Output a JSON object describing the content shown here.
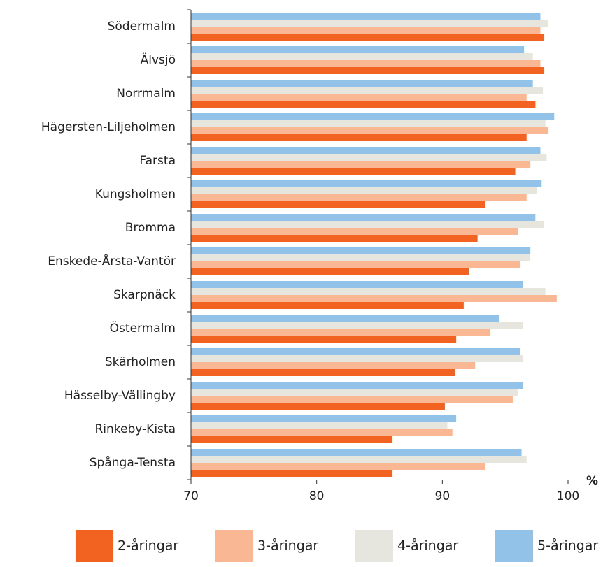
{
  "chart_data": {
    "type": "hbar",
    "categories": [
      "Södermalm",
      "Älvsjö",
      "Norrmalm",
      "Hägersten-Liljeholmen",
      "Farsta",
      "Kungsholmen",
      "Bromma",
      "Enskede-Årsta-Vantör",
      "Skarpnäck",
      "Östermalm",
      "Skärholmen",
      "Hässelby-Vällingby",
      "Rinkeby-Kista",
      "Spånga-Tensta"
    ],
    "series": [
      {
        "name": "5-åringar",
        "color": "#93c2e8",
        "values": [
          97.8,
          96.5,
          97.2,
          98.9,
          97.8,
          97.9,
          97.4,
          97.0,
          96.4,
          94.5,
          96.2,
          96.4,
          91.1,
          96.3
        ]
      },
      {
        "name": "4-åringar",
        "color": "#e6e6df",
        "values": [
          98.4,
          97.2,
          98.0,
          98.2,
          98.3,
          97.5,
          98.1,
          97.0,
          98.2,
          96.4,
          96.4,
          96.0,
          90.4,
          96.7
        ]
      },
      {
        "name": "3-åringar",
        "color": "#f9b893",
        "values": [
          97.8,
          97.8,
          96.7,
          98.4,
          97.0,
          96.7,
          96.0,
          96.2,
          99.1,
          93.8,
          92.6,
          95.6,
          90.8,
          93.4
        ]
      },
      {
        "name": "2-åringar",
        "color": "#f26322",
        "values": [
          98.1,
          98.1,
          97.4,
          96.7,
          95.8,
          93.4,
          92.8,
          92.1,
          91.7,
          91.1,
          91.0,
          90.2,
          86.0,
          86.0
        ]
      }
    ],
    "xlim": [
      70,
      100
    ],
    "xticks": [
      70,
      80,
      90,
      100
    ],
    "x_unit": "%"
  }
}
